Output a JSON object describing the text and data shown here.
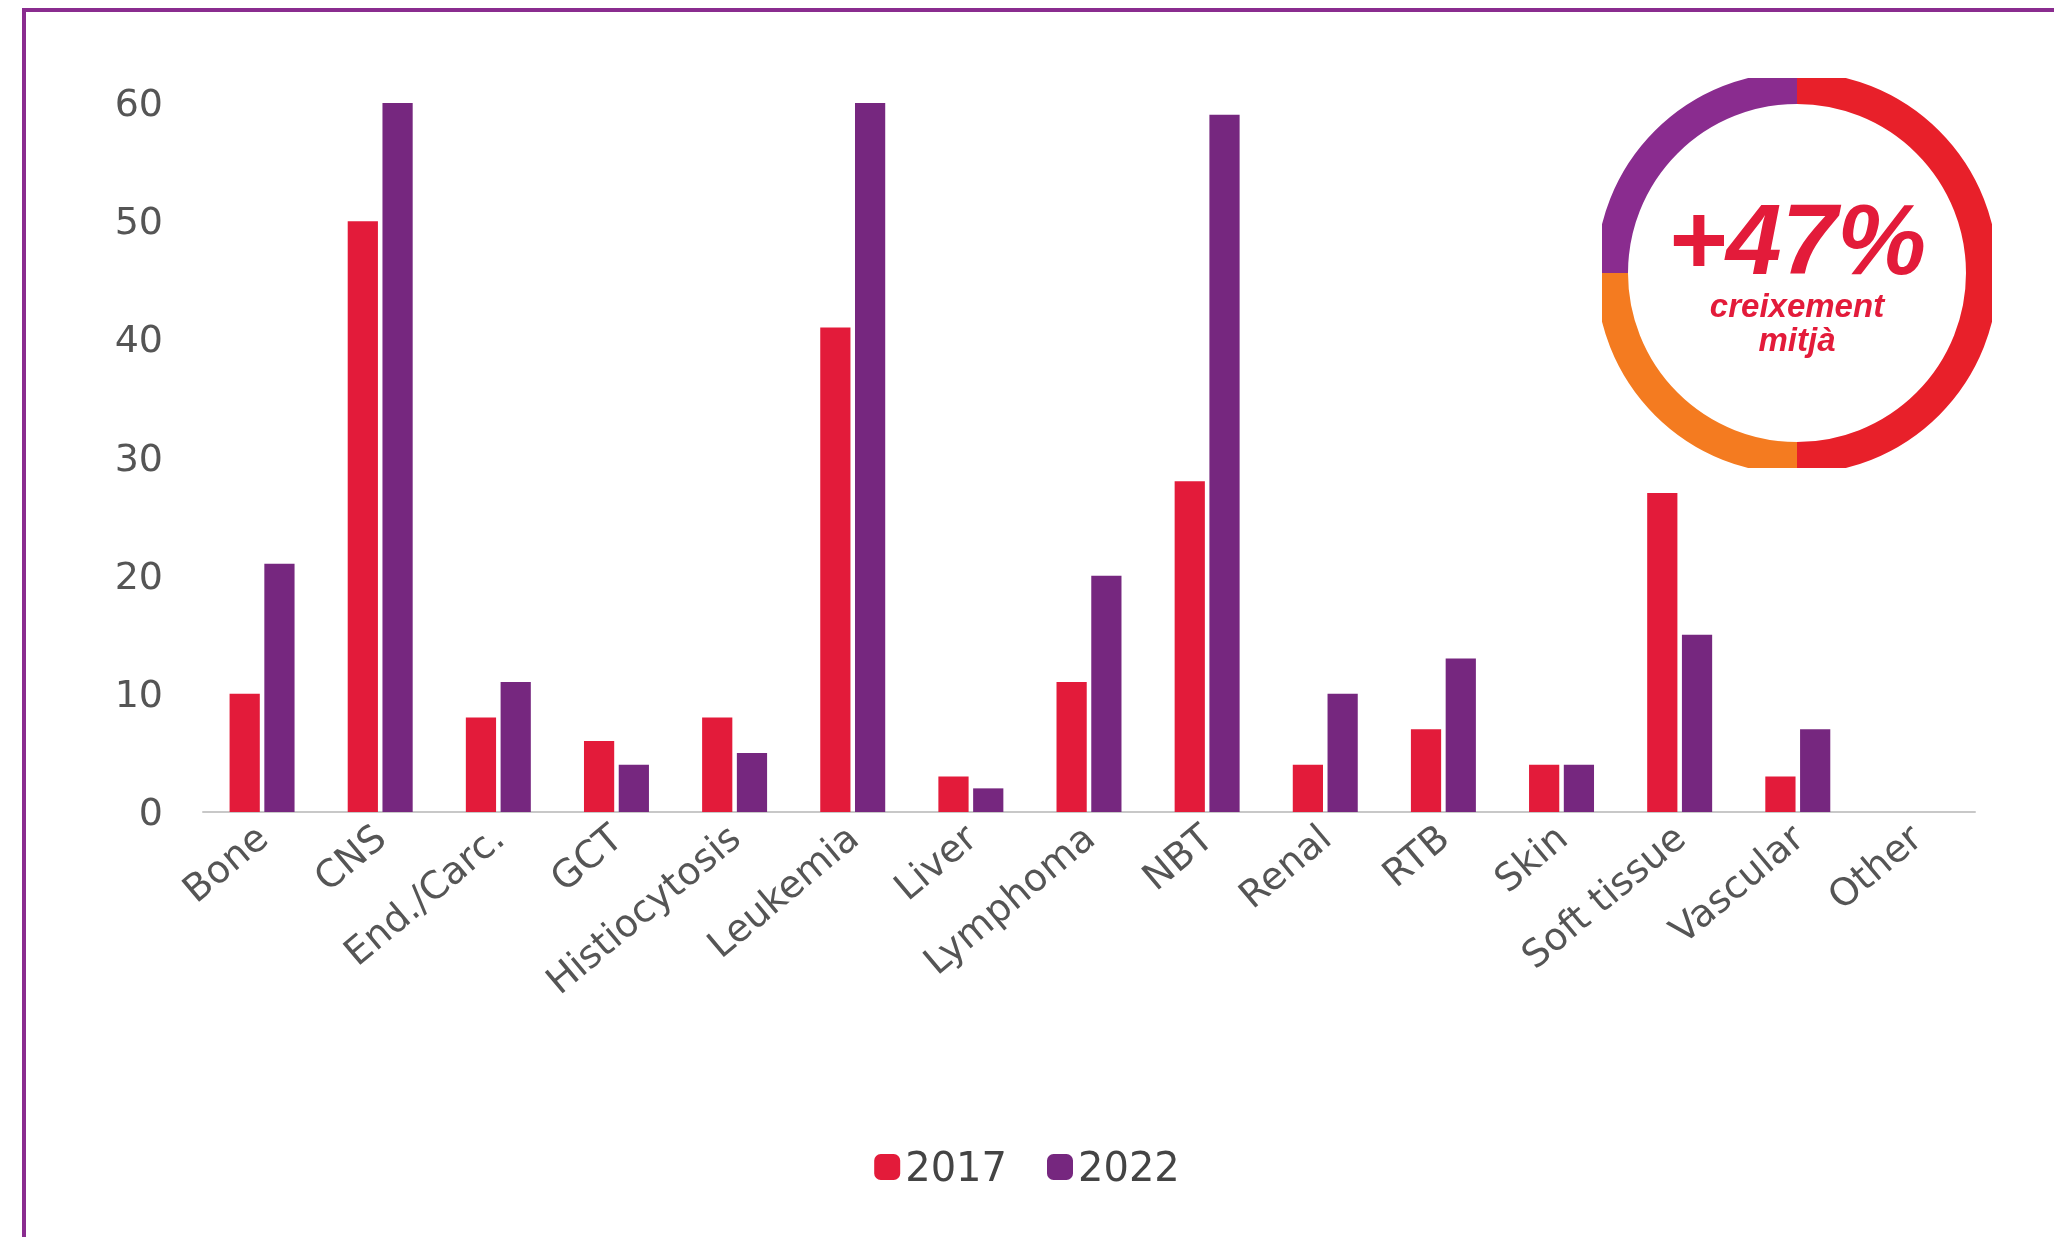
{
  "chart_data": {
    "type": "bar",
    "categories": [
      "Bone",
      "CNS",
      "End./Carc.",
      "GCT",
      "Histiocytosis",
      "Leukemia",
      "Liver",
      "Lymphoma",
      "NBT",
      "Renal",
      "RTB",
      "Skin",
      "Soft tissue",
      "Vascular",
      "Other"
    ],
    "series": [
      {
        "name": "2017",
        "color": "#e31b3a",
        "values": [
          10,
          50,
          8,
          6,
          8,
          41,
          3,
          11,
          28,
          4,
          7,
          4,
          27,
          3,
          null
        ]
      },
      {
        "name": "2022",
        "color": "#76277f",
        "values": [
          21,
          60,
          11,
          4,
          5,
          60,
          2,
          20,
          59,
          10,
          13,
          4,
          15,
          7,
          null
        ]
      }
    ],
    "ylim": [
      0,
      60
    ],
    "yticks": [
      0,
      10,
      20,
      30,
      40,
      50,
      60
    ],
    "grid": false,
    "legend": "bottom",
    "annotations": [
      "+47%",
      "creixement mitjà"
    ]
  }
}
